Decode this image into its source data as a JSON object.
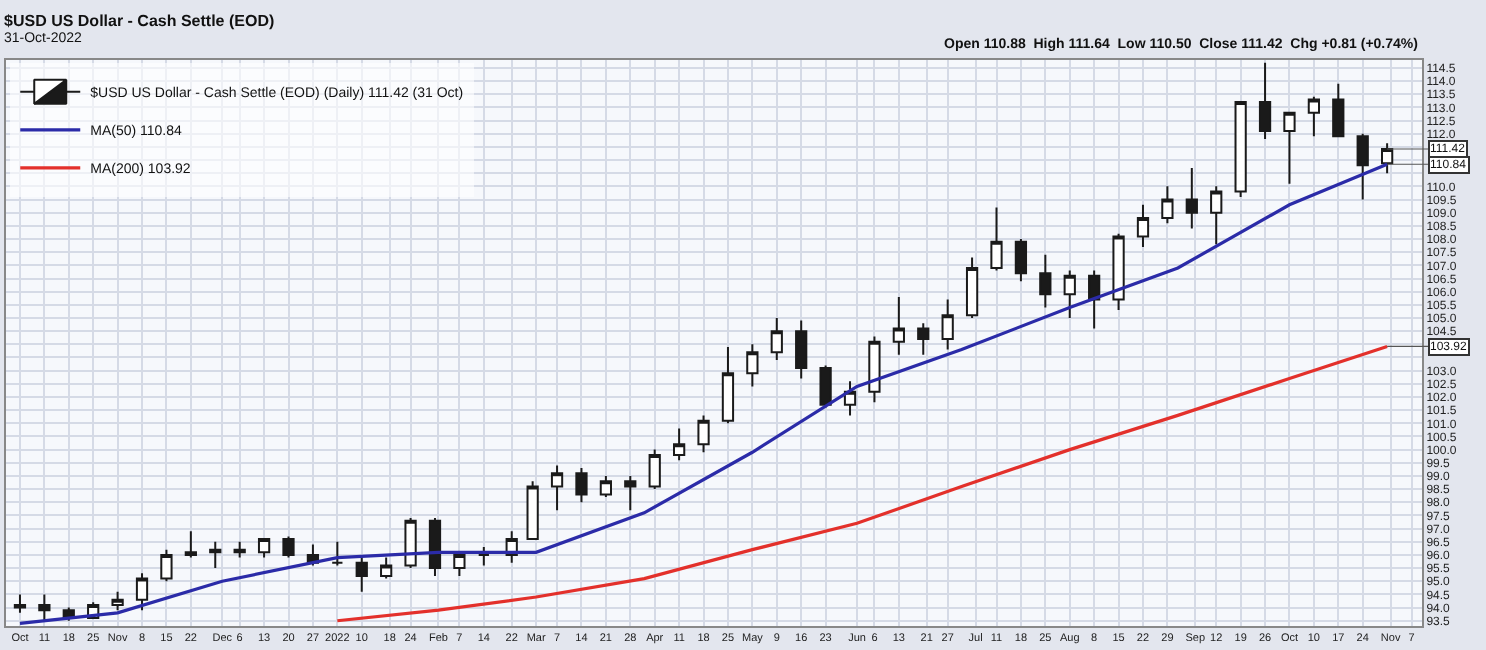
{
  "chart_data": {
    "type": "candlestick",
    "title": "$USD US Dollar - Cash Settle (EOD)",
    "subtitle": "31-Oct-2022",
    "annotations": [
      "Open 110.88  High 111.64  Low 110.50  Close 111.42  Chg +0.81 (+0.74%)",
      {
        "text": "111.42",
        "x": "2022-10-31",
        "y": 111.42
      },
      {
        "text": "110.84",
        "x": "2022-10-31",
        "y": 110.84
      },
      {
        "text": "103.92",
        "x": "2022-10-31",
        "y": 103.92
      }
    ],
    "series": [
      {
        "name": "$USD US Dollar - Cash Settle (EOD) (Daily) 111.42 (31 Oct)",
        "color": "#1a1a1a",
        "x": [
          "2021-10-04",
          "2021-10-11",
          "2021-10-18",
          "2021-10-25",
          "2021-11-01",
          "2021-11-08",
          "2021-11-15",
          "2021-11-22",
          "2021-11-29",
          "2021-12-06",
          "2021-12-13",
          "2021-12-20",
          "2021-12-27",
          "2022-01-03",
          "2022-01-10",
          "2022-01-17",
          "2022-01-24",
          "2022-01-31",
          "2022-02-07",
          "2022-02-14",
          "2022-02-22",
          "2022-02-28",
          "2022-03-07",
          "2022-03-14",
          "2022-03-21",
          "2022-03-28",
          "2022-04-04",
          "2022-04-11",
          "2022-04-18",
          "2022-04-25",
          "2022-05-02",
          "2022-05-09",
          "2022-05-16",
          "2022-05-23",
          "2022-05-30",
          "2022-06-06",
          "2022-06-13",
          "2022-06-20",
          "2022-06-27",
          "2022-07-04",
          "2022-07-11",
          "2022-07-18",
          "2022-07-25",
          "2022-08-01",
          "2022-08-08",
          "2022-08-15",
          "2022-08-22",
          "2022-08-29",
          "2022-09-05",
          "2022-09-12",
          "2022-09-19",
          "2022-09-26",
          "2022-10-03",
          "2022-10-10",
          "2022-10-17",
          "2022-10-24",
          "2022-10-31"
        ],
        "ohlc": [
          [
            94.0,
            94.5,
            93.8,
            94.1
          ],
          [
            94.1,
            94.5,
            93.5,
            93.9
          ],
          [
            93.9,
            94.0,
            93.5,
            93.6
          ],
          [
            93.6,
            94.2,
            93.6,
            94.1
          ],
          [
            94.1,
            94.6,
            93.9,
            94.3
          ],
          [
            94.3,
            95.3,
            93.9,
            95.1
          ],
          [
            95.1,
            96.2,
            95.0,
            96.0
          ],
          [
            96.0,
            96.9,
            95.9,
            96.1
          ],
          [
            96.1,
            96.5,
            95.5,
            96.2
          ],
          [
            96.2,
            96.5,
            95.9,
            96.1
          ],
          [
            96.1,
            96.6,
            95.9,
            96.6
          ],
          [
            96.6,
            96.7,
            95.9,
            96.0
          ],
          [
            96.0,
            96.4,
            95.6,
            95.7
          ],
          [
            95.7,
            96.5,
            95.6,
            95.7
          ],
          [
            95.7,
            96.0,
            94.6,
            95.2
          ],
          [
            95.2,
            95.9,
            95.1,
            95.6
          ],
          [
            95.6,
            97.4,
            95.5,
            97.3
          ],
          [
            97.3,
            97.4,
            95.2,
            95.5
          ],
          [
            95.5,
            96.0,
            95.2,
            96.0
          ],
          [
            96.0,
            96.3,
            95.6,
            96.0
          ],
          [
            96.0,
            96.9,
            95.7,
            96.6
          ],
          [
            96.6,
            98.8,
            96.6,
            98.6
          ],
          [
            98.6,
            99.4,
            97.7,
            99.1
          ],
          [
            99.1,
            99.3,
            98.0,
            98.3
          ],
          [
            98.3,
            99.0,
            98.2,
            98.8
          ],
          [
            98.8,
            99.0,
            97.7,
            98.6
          ],
          [
            98.6,
            100.0,
            98.5,
            99.8
          ],
          [
            99.8,
            100.8,
            99.6,
            100.2
          ],
          [
            100.2,
            101.3,
            99.9,
            101.1
          ],
          [
            101.1,
            103.9,
            101.0,
            102.9
          ],
          [
            102.9,
            104.0,
            102.4,
            103.7
          ],
          [
            103.7,
            105.0,
            103.4,
            104.5
          ],
          [
            104.5,
            104.9,
            102.7,
            103.1
          ],
          [
            103.1,
            103.2,
            101.6,
            101.7
          ],
          [
            101.7,
            102.6,
            101.3,
            102.2
          ],
          [
            102.2,
            104.3,
            101.8,
            104.1
          ],
          [
            104.1,
            105.8,
            103.6,
            104.6
          ],
          [
            104.6,
            104.8,
            103.6,
            104.2
          ],
          [
            104.2,
            105.7,
            103.8,
            105.1
          ],
          [
            105.1,
            107.3,
            105.0,
            106.9
          ],
          [
            106.9,
            109.2,
            106.8,
            107.9
          ],
          [
            107.9,
            108.0,
            106.4,
            106.7
          ],
          [
            106.7,
            107.4,
            105.4,
            105.9
          ],
          [
            105.9,
            106.8,
            105.0,
            106.6
          ],
          [
            106.6,
            106.8,
            104.6,
            105.7
          ],
          [
            105.7,
            108.2,
            105.3,
            108.1
          ],
          [
            108.1,
            109.3,
            107.7,
            108.8
          ],
          [
            108.8,
            110.0,
            108.6,
            109.5
          ],
          [
            109.5,
            110.7,
            108.4,
            109.0
          ],
          [
            109.0,
            110.0,
            107.8,
            109.8
          ],
          [
            109.8,
            113.2,
            109.6,
            113.2
          ],
          [
            113.2,
            114.7,
            111.8,
            112.1
          ],
          [
            112.1,
            112.8,
            110.1,
            112.8
          ],
          [
            112.8,
            113.4,
            111.9,
            113.3
          ],
          [
            113.3,
            113.9,
            111.9,
            111.9
          ],
          [
            111.9,
            112.0,
            109.5,
            110.8
          ],
          [
            110.88,
            111.64,
            110.5,
            111.42
          ]
        ]
      },
      {
        "name": "MA(50) 110.84",
        "type": "line",
        "color": "#2b2ba8",
        "x": [
          "2021-10-04",
          "2021-11-01",
          "2021-12-01",
          "2022-01-03",
          "2022-02-01",
          "2022-03-01",
          "2022-04-01",
          "2022-05-02",
          "2022-06-01",
          "2022-07-01",
          "2022-08-01",
          "2022-09-01",
          "2022-10-03",
          "2022-10-31"
        ],
        "values": [
          93.4,
          93.8,
          95.0,
          95.9,
          96.1,
          96.1,
          97.6,
          99.9,
          102.4,
          103.8,
          105.4,
          106.9,
          109.3,
          110.84
        ]
      },
      {
        "name": "MA(200) 103.92",
        "type": "line",
        "color": "#e3302b",
        "x": [
          "2022-01-03",
          "2022-02-01",
          "2022-03-01",
          "2022-04-01",
          "2022-05-02",
          "2022-06-01",
          "2022-07-01",
          "2022-08-01",
          "2022-09-01",
          "2022-10-03",
          "2022-10-31"
        ],
        "values": [
          93.5,
          93.9,
          94.4,
          95.1,
          96.2,
          97.2,
          98.6,
          100.0,
          101.3,
          102.7,
          103.92
        ]
      }
    ],
    "xlim": [
      "2021-09-30",
      "2022-11-10"
    ],
    "xticks": [
      {
        "value": "2021-10-04",
        "label": "Oct"
      },
      {
        "value": "2021-10-11",
        "label": "11"
      },
      {
        "value": "2021-10-18",
        "label": "18"
      },
      {
        "value": "2021-10-25",
        "label": "25"
      },
      {
        "value": "2021-11-01",
        "label": "Nov"
      },
      {
        "value": "2021-11-08",
        "label": "8"
      },
      {
        "value": "2021-11-15",
        "label": "15"
      },
      {
        "value": "2021-11-22",
        "label": "22"
      },
      {
        "value": "2021-12-01",
        "label": "Dec"
      },
      {
        "value": "2021-12-06",
        "label": "6"
      },
      {
        "value": "2021-12-13",
        "label": "13"
      },
      {
        "value": "2021-12-20",
        "label": "20"
      },
      {
        "value": "2021-12-27",
        "label": "27"
      },
      {
        "value": "2022-01-03",
        "label": "2022"
      },
      {
        "value": "2022-01-10",
        "label": "10"
      },
      {
        "value": "2022-01-18",
        "label": "18"
      },
      {
        "value": "2022-01-24",
        "label": "24"
      },
      {
        "value": "2022-02-01",
        "label": "Feb"
      },
      {
        "value": "2022-02-07",
        "label": "7"
      },
      {
        "value": "2022-02-14",
        "label": "14"
      },
      {
        "value": "2022-02-22",
        "label": "22"
      },
      {
        "value": "2022-03-01",
        "label": "Mar"
      },
      {
        "value": "2022-03-07",
        "label": "7"
      },
      {
        "value": "2022-03-14",
        "label": "14"
      },
      {
        "value": "2022-03-21",
        "label": "21"
      },
      {
        "value": "2022-03-28",
        "label": "28"
      },
      {
        "value": "2022-04-04",
        "label": "Apr"
      },
      {
        "value": "2022-04-11",
        "label": "11"
      },
      {
        "value": "2022-04-18",
        "label": "18"
      },
      {
        "value": "2022-04-25",
        "label": "25"
      },
      {
        "value": "2022-05-02",
        "label": "May"
      },
      {
        "value": "2022-05-09",
        "label": "9"
      },
      {
        "value": "2022-05-16",
        "label": "16"
      },
      {
        "value": "2022-05-23",
        "label": "23"
      },
      {
        "value": "2022-06-01",
        "label": "Jun"
      },
      {
        "value": "2022-06-06",
        "label": "6"
      },
      {
        "value": "2022-06-13",
        "label": "13"
      },
      {
        "value": "2022-06-21",
        "label": "21"
      },
      {
        "value": "2022-06-27",
        "label": "27"
      },
      {
        "value": "2022-07-05",
        "label": "Jul"
      },
      {
        "value": "2022-07-11",
        "label": "11"
      },
      {
        "value": "2022-07-18",
        "label": "18"
      },
      {
        "value": "2022-07-25",
        "label": "25"
      },
      {
        "value": "2022-08-01",
        "label": "Aug"
      },
      {
        "value": "2022-08-08",
        "label": "8"
      },
      {
        "value": "2022-08-15",
        "label": "15"
      },
      {
        "value": "2022-08-22",
        "label": "22"
      },
      {
        "value": "2022-08-29",
        "label": "29"
      },
      {
        "value": "2022-09-06",
        "label": "Sep"
      },
      {
        "value": "2022-09-12",
        "label": "12"
      },
      {
        "value": "2022-09-19",
        "label": "19"
      },
      {
        "value": "2022-09-26",
        "label": "26"
      },
      {
        "value": "2022-10-03",
        "label": "Oct"
      },
      {
        "value": "2022-10-10",
        "label": "10"
      },
      {
        "value": "2022-10-17",
        "label": "17"
      },
      {
        "value": "2022-10-24",
        "label": "24"
      },
      {
        "value": "2022-11-01",
        "label": "Nov"
      },
      {
        "value": "2022-11-07",
        "label": "7"
      }
    ],
    "ylim": [
      93.3,
      114.8
    ],
    "yticks": [
      {
        "value": 93.5,
        "label": "93.5"
      },
      {
        "value": 94,
        "label": "94.0"
      },
      {
        "value": 94.5,
        "label": "94.5"
      },
      {
        "value": 95,
        "label": "95.0"
      },
      {
        "value": 95.5,
        "label": "95.5"
      },
      {
        "value": 96,
        "label": "96.0"
      },
      {
        "value": 96.5,
        "label": "96.5"
      },
      {
        "value": 97,
        "label": "97.0"
      },
      {
        "value": 97.5,
        "label": "97.5"
      },
      {
        "value": 98,
        "label": "98.0"
      },
      {
        "value": 98.5,
        "label": "98.5"
      },
      {
        "value": 99,
        "label": "99.0"
      },
      {
        "value": 99.5,
        "label": "99.5"
      },
      {
        "value": 100,
        "label": "100.0"
      },
      {
        "value": 100.5,
        "label": "100.5"
      },
      {
        "value": 101,
        "label": "101.0"
      },
      {
        "value": 101.5,
        "label": "101.5"
      },
      {
        "value": 102,
        "label": "102.0"
      },
      {
        "value": 102.5,
        "label": "102.5"
      },
      {
        "value": 103,
        "label": "103.0"
      },
      {
        "value": 103.5,
        "label": null
      },
      {
        "value": 104,
        "label": null
      },
      {
        "value": 104.5,
        "label": "104.5"
      },
      {
        "value": 105,
        "label": "105.0"
      },
      {
        "value": 105.5,
        "label": "105.5"
      },
      {
        "value": 106,
        "label": "106.0"
      },
      {
        "value": 106.5,
        "label": "106.5"
      },
      {
        "value": 107,
        "label": "107.0"
      },
      {
        "value": 107.5,
        "label": "107.5"
      },
      {
        "value": 108,
        "label": "108.0"
      },
      {
        "value": 108.5,
        "label": "108.5"
      },
      {
        "value": 109,
        "label": "109.0"
      },
      {
        "value": 109.5,
        "label": "109.5"
      },
      {
        "value": 110,
        "label": "110.0"
      },
      {
        "value": 110.5,
        "label": null
      },
      {
        "value": 111,
        "label": null
      },
      {
        "value": 111.5,
        "label": null
      },
      {
        "value": 112,
        "label": "112.0"
      },
      {
        "value": 112.5,
        "label": "112.5"
      },
      {
        "value": 113,
        "label": "113.0"
      },
      {
        "value": 113.5,
        "label": "113.5"
      },
      {
        "value": 114,
        "label": "114.0"
      },
      {
        "value": 114.5,
        "label": "114.5"
      }
    ],
    "grid": true,
    "legend": "top left"
  }
}
